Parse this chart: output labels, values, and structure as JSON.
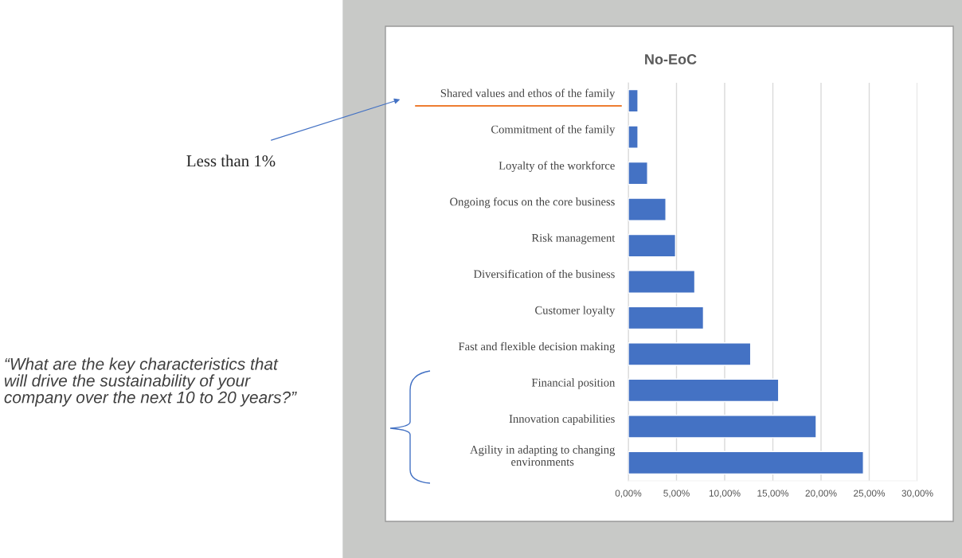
{
  "chart_data": {
    "type": "bar",
    "orientation": "horizontal",
    "title": "No-EoC",
    "categories": [
      "Shared values and ethos of the family",
      "Commitment of the family",
      "Loyalty of the workforce",
      "Ongoing focus on the core business",
      "Risk management",
      "Diversification of the business",
      "Customer loyalty",
      "Fast and flexible decision making",
      "Financial position",
      "Innovation capabilities",
      "Agility in adapting to changing\nenvironments"
    ],
    "values": [
      1.0,
      1.0,
      2.0,
      3.9,
      4.9,
      6.9,
      7.8,
      12.7,
      15.6,
      19.5,
      24.4
    ],
    "color": "#4472c4",
    "xlim": [
      0,
      30
    ],
    "xticks": [
      {
        "value": 0,
        "label": "0,00%"
      },
      {
        "value": 5,
        "label": "5,00%"
      },
      {
        "value": 10,
        "label": "10,00%"
      },
      {
        "value": 15,
        "label": "15,00%"
      },
      {
        "value": 20,
        "label": "20,00%"
      },
      {
        "value": 25,
        "label": "25,00%"
      },
      {
        "value": 30,
        "label": "30,00%"
      }
    ],
    "grid": "x",
    "annotations": [
      "Less than 1%",
      "“What are the key characteristics that will drive the sustainability of your company over the next 10 to 20 years?”"
    ]
  }
}
